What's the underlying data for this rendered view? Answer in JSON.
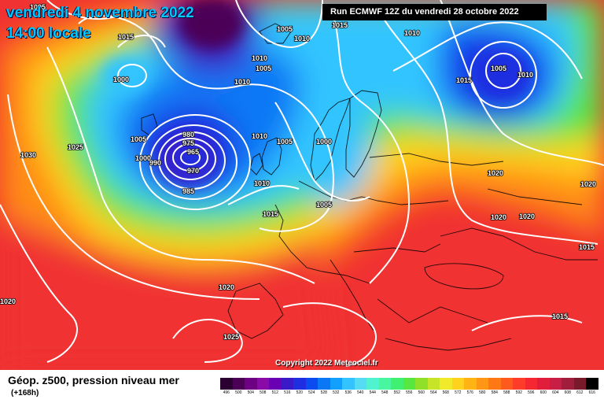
{
  "header": {
    "date": "vendredi 4 novembre 2022",
    "time": "14:00 locale",
    "run": "Run ECMWF 12Z du vendredi 28 octobre 2022"
  },
  "copyright": "Copyright 2022 Meteociel.fr",
  "footer": {
    "title": "Géop. z500, pression niveau mer",
    "forecast_hour": "(+168h)"
  },
  "legend": {
    "values": [
      "496",
      "500",
      "504",
      "508",
      "512",
      "516",
      "520",
      "524",
      "528",
      "532",
      "536",
      "540",
      "544",
      "548",
      "552",
      "556",
      "560",
      "564",
      "568",
      "572",
      "576",
      "580",
      "584",
      "588",
      "592",
      "596",
      "600",
      "604",
      "608",
      "612",
      "616"
    ],
    "colors": [
      "#2a0030",
      "#4b0056",
      "#6d0083",
      "#8a0aa8",
      "#6a00b4",
      "#3a1ac8",
      "#1f2ee0",
      "#0a4cf0",
      "#0a78f5",
      "#12a0ff",
      "#33c4ff",
      "#55dcf2",
      "#50f2d0",
      "#48f5a0",
      "#40f070",
      "#58e640",
      "#90e02a",
      "#c8e428",
      "#f0ea2a",
      "#ffd21e",
      "#ffb414",
      "#ff9614",
      "#ff7814",
      "#ff5a1e",
      "#ff3c28",
      "#f52832",
      "#e01e3c",
      "#c81e46",
      "#a01e3c",
      "#781a2a",
      "#000000"
    ]
  },
  "isobar_labels": [
    "1005",
    "1015",
    "1000",
    "1005",
    "1010",
    "1005",
    "1010",
    "1015",
    "1010",
    "1010",
    "1005",
    "1010",
    "1015",
    "1030",
    "1025",
    "980",
    "975",
    "965",
    "970",
    "990",
    "1000",
    "985",
    "1005",
    "1010",
    "1005",
    "1000",
    "1015",
    "1020",
    "1020",
    "1020",
    "1020",
    "1010",
    "1005",
    "1020",
    "1025",
    "1015",
    "1015"
  ],
  "colors": {
    "title": "#00c8ff"
  }
}
